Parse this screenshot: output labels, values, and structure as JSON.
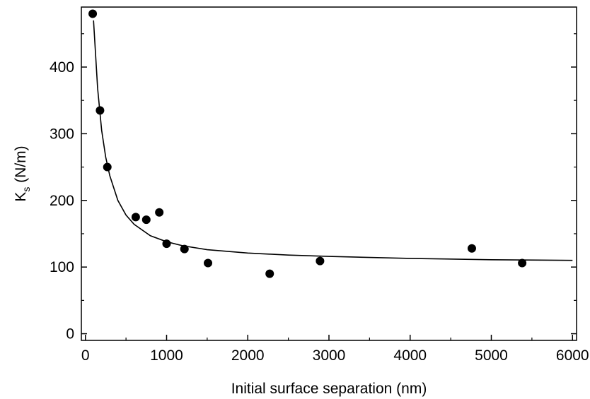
{
  "chart_data": {
    "type": "scatter",
    "title": "",
    "xlabel": "Initial surface separation (nm)",
    "ylabel_main": "K",
    "ylabel_sub": "s",
    "ylabel_unit": " (N/m)",
    "xlim": [
      -50,
      6050
    ],
    "ylim": [
      -10,
      490
    ],
    "xticks": [
      0,
      1000,
      2000,
      3000,
      4000,
      5000,
      6000
    ],
    "xtick_labels": [
      "0",
      "1000",
      "2000",
      "3000",
      "4000",
      "5000",
      "6000"
    ],
    "yticks": [
      0,
      100,
      200,
      300,
      400
    ],
    "ytick_labels": [
      "0",
      "100",
      "200",
      "300",
      "400"
    ],
    "grid": false,
    "marker_color": "#000000",
    "series": [
      {
        "points": [
          {
            "x": 90,
            "y": 480
          },
          {
            "x": 180,
            "y": 335
          },
          {
            "x": 270,
            "y": 250
          },
          {
            "x": 620,
            "y": 175
          },
          {
            "x": 750,
            "y": 171
          },
          {
            "x": 910,
            "y": 182
          },
          {
            "x": 1000,
            "y": 135
          },
          {
            "x": 1220,
            "y": 127
          },
          {
            "x": 1510,
            "y": 106
          },
          {
            "x": 2270,
            "y": 90
          },
          {
            "x": 2890,
            "y": 109
          },
          {
            "x": 4760,
            "y": 128
          },
          {
            "x": 5380,
            "y": 106
          }
        ]
      }
    ],
    "fit_curve": [
      {
        "x": 100,
        "y": 470
      },
      {
        "x": 150,
        "y": 368
      },
      {
        "x": 200,
        "y": 305
      },
      {
        "x": 250,
        "y": 265
      },
      {
        "x": 300,
        "y": 237
      },
      {
        "x": 400,
        "y": 200
      },
      {
        "x": 500,
        "y": 178
      },
      {
        "x": 600,
        "y": 164
      },
      {
        "x": 800,
        "y": 147
      },
      {
        "x": 1000,
        "y": 138
      },
      {
        "x": 1200,
        "y": 132
      },
      {
        "x": 1500,
        "y": 126
      },
      {
        "x": 2000,
        "y": 121
      },
      {
        "x": 2500,
        "y": 118
      },
      {
        "x": 3000,
        "y": 116
      },
      {
        "x": 4000,
        "y": 113
      },
      {
        "x": 5000,
        "y": 111
      },
      {
        "x": 6000,
        "y": 110
      }
    ]
  }
}
